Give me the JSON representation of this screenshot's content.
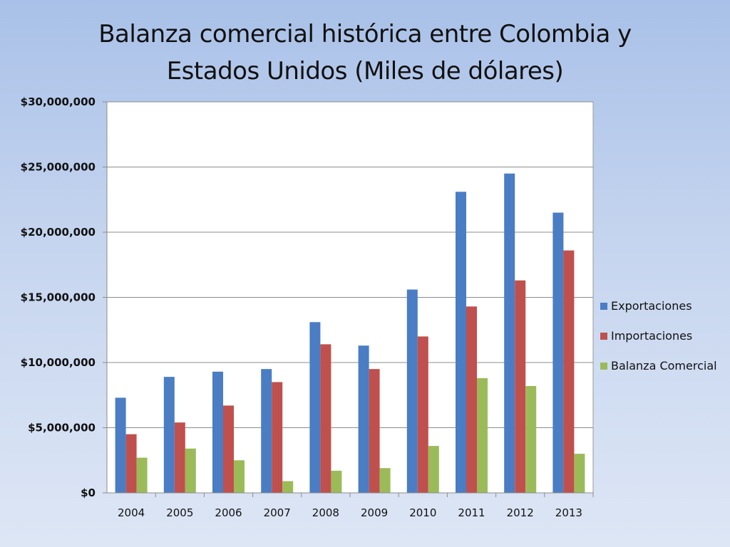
{
  "chart_data": {
    "type": "bar",
    "title": "Balanza comercial histórica entre Colombia y Estados Unidos (Miles de dólares)",
    "title_lines": [
      "Balanza comercial histórica entre Colombia y",
      "Estados Unidos (Miles de dólares)"
    ],
    "categories": [
      "2004",
      "2005",
      "2006",
      "2007",
      "2008",
      "2009",
      "2010",
      "2011",
      "2012",
      "2013"
    ],
    "series": [
      {
        "name": "Exportaciones",
        "color": "#4a7dc4",
        "values": [
          7300000,
          8900000,
          9300000,
          9500000,
          13100000,
          11300000,
          15600000,
          23100000,
          24500000,
          21500000
        ]
      },
      {
        "name": "Importaciones",
        "color": "#c0504d",
        "values": [
          4500000,
          5400000,
          6700000,
          8500000,
          11400000,
          9500000,
          12000000,
          14300000,
          16300000,
          18600000
        ]
      },
      {
        "name": "Balanza Comercial",
        "color": "#9bbb59",
        "values": [
          2700000,
          3400000,
          2500000,
          900000,
          1700000,
          1900000,
          3600000,
          8800000,
          8200000,
          3000000
        ]
      }
    ],
    "y_ticks": [
      "$0",
      "$5,000,000",
      "$10,000,000",
      "$15,000,000",
      "$20,000,000",
      "$25,000,000",
      "$30,000,000"
    ],
    "ylim": [
      0,
      30000000
    ],
    "xlabel": "",
    "ylabel": "",
    "grid": true,
    "legend_position": "right"
  }
}
